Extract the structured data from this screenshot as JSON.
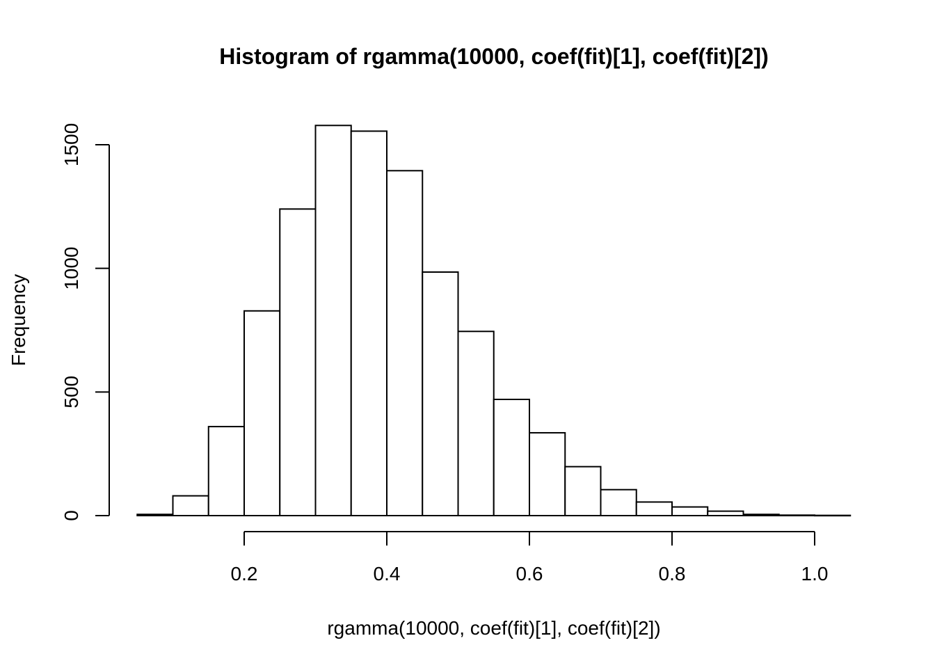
{
  "chart_data": {
    "type": "bar",
    "title": "Histogram of rgamma(10000, coef(fit)[1], coef(fit)[2])",
    "xlabel": "rgamma(10000, coef(fit)[1], coef(fit)[2])",
    "ylabel": "Frequency",
    "bin_edges": [
      0.05,
      0.1,
      0.15,
      0.2,
      0.25,
      0.3,
      0.35,
      0.4,
      0.45,
      0.5,
      0.55,
      0.6,
      0.65,
      0.7,
      0.75,
      0.8,
      0.85,
      0.9,
      0.95,
      1.0,
      1.05
    ],
    "values": [
      5,
      80,
      360,
      828,
      1240,
      1578,
      1555,
      1395,
      985,
      745,
      470,
      335,
      198,
      105,
      55,
      35,
      18,
      5,
      2,
      1
    ],
    "xticks": [
      0.2,
      0.4,
      0.6,
      0.8,
      1.0
    ],
    "xtick_labels": [
      "0.2",
      "0.4",
      "0.6",
      "0.8",
      "1.0"
    ],
    "yticks": [
      0,
      500,
      1000,
      1500
    ],
    "ytick_labels": [
      "0",
      "500",
      "1000",
      "1500"
    ],
    "xlim": [
      0.2,
      1.0
    ],
    "ylim": [
      0,
      1578
    ],
    "grid": false,
    "colors": {
      "bar_fill": "#ffffff",
      "bar_stroke": "#000000"
    }
  }
}
